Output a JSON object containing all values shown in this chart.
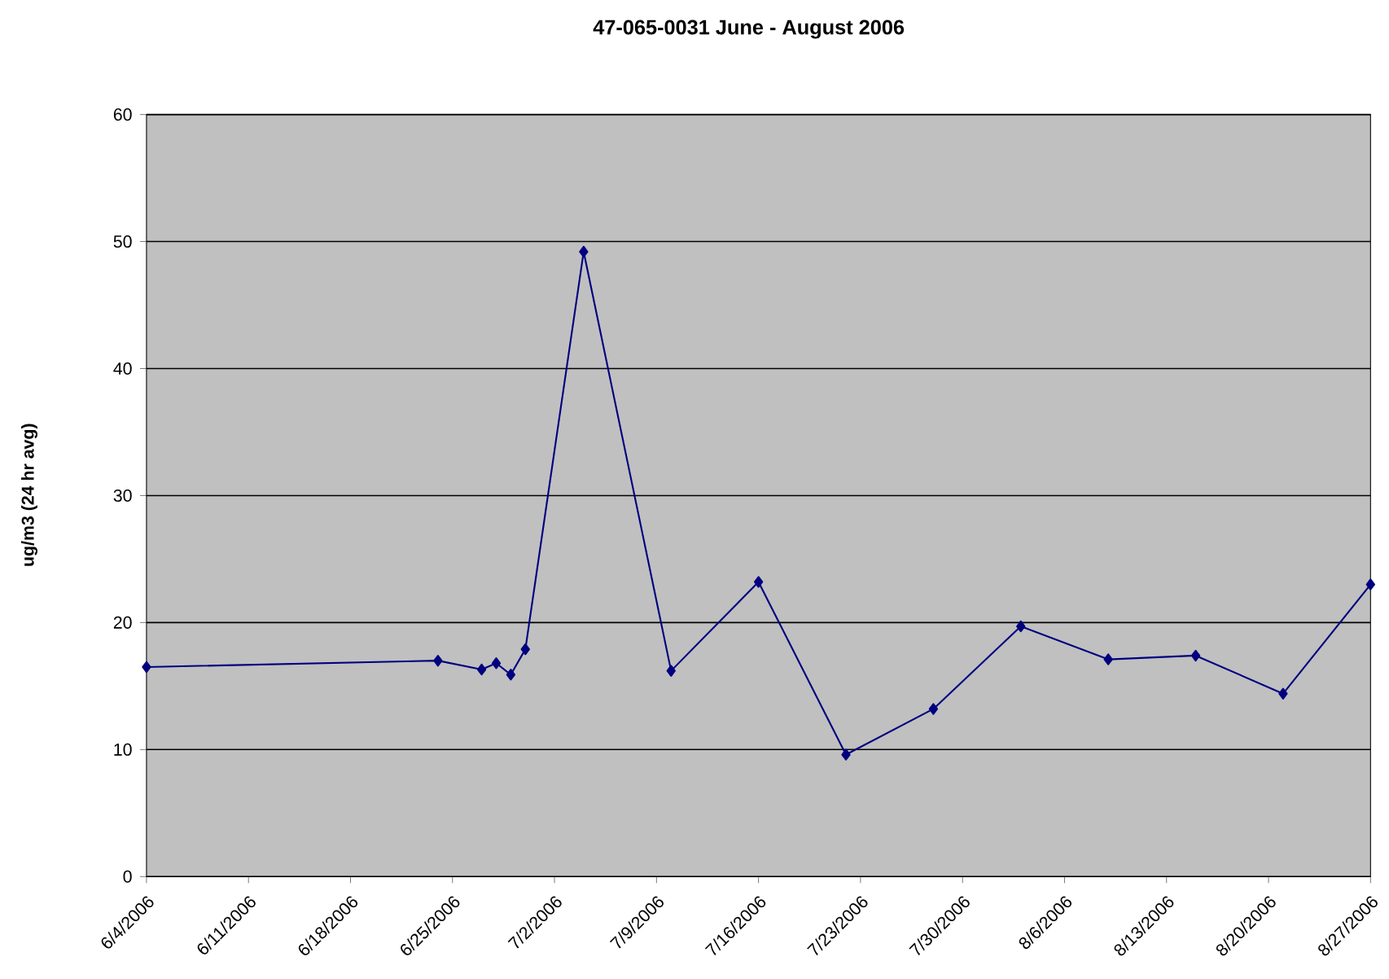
{
  "chart_data": {
    "type": "line",
    "title": "47-065-0031 June - August 2006",
    "ylabel": "ug/m3 (24 hr avg)",
    "x": [
      "2006-06-04",
      "2006-06-24",
      "2006-06-27",
      "2006-06-28",
      "2006-06-29",
      "2006-06-30",
      "2006-07-04",
      "2006-07-10",
      "2006-07-16",
      "2006-07-22",
      "2006-07-28",
      "2006-08-03",
      "2006-08-09",
      "2006-08-15",
      "2006-08-21",
      "2006-08-27"
    ],
    "series": [
      {
        "color": "#000080",
        "values": [
          16.5,
          17.0,
          16.3,
          16.8,
          15.9,
          17.9,
          49.2,
          16.2,
          23.2,
          9.6,
          13.2,
          19.7,
          17.1,
          17.4,
          14.4,
          23.0
        ]
      }
    ],
    "marker": "diamond",
    "line_style": "solid",
    "grid": "y",
    "xlim": [
      "2006-06-04",
      "2006-08-27"
    ],
    "xticks": [
      {
        "value": "2006-06-04",
        "label": "6/4/2006"
      },
      {
        "value": "2006-06-11",
        "label": "6/11/2006"
      },
      {
        "value": "2006-06-18",
        "label": "6/18/2006"
      },
      {
        "value": "2006-06-25",
        "label": "6/25/2006"
      },
      {
        "value": "2006-07-02",
        "label": "7/2/2006"
      },
      {
        "value": "2006-07-09",
        "label": "7/9/2006"
      },
      {
        "value": "2006-07-16",
        "label": "7/16/2006"
      },
      {
        "value": "2006-07-23",
        "label": "7/23/2006"
      },
      {
        "value": "2006-07-30",
        "label": "7/30/2006"
      },
      {
        "value": "2006-08-06",
        "label": "8/6/2006"
      },
      {
        "value": "2006-08-13",
        "label": "8/13/2006"
      },
      {
        "value": "2006-08-20",
        "label": "8/20/2006"
      },
      {
        "value": "2006-08-27",
        "label": "8/27/2006"
      }
    ],
    "ylim": [
      0,
      60
    ],
    "yticks": [
      0,
      10,
      20,
      30,
      40,
      50,
      60
    ]
  }
}
